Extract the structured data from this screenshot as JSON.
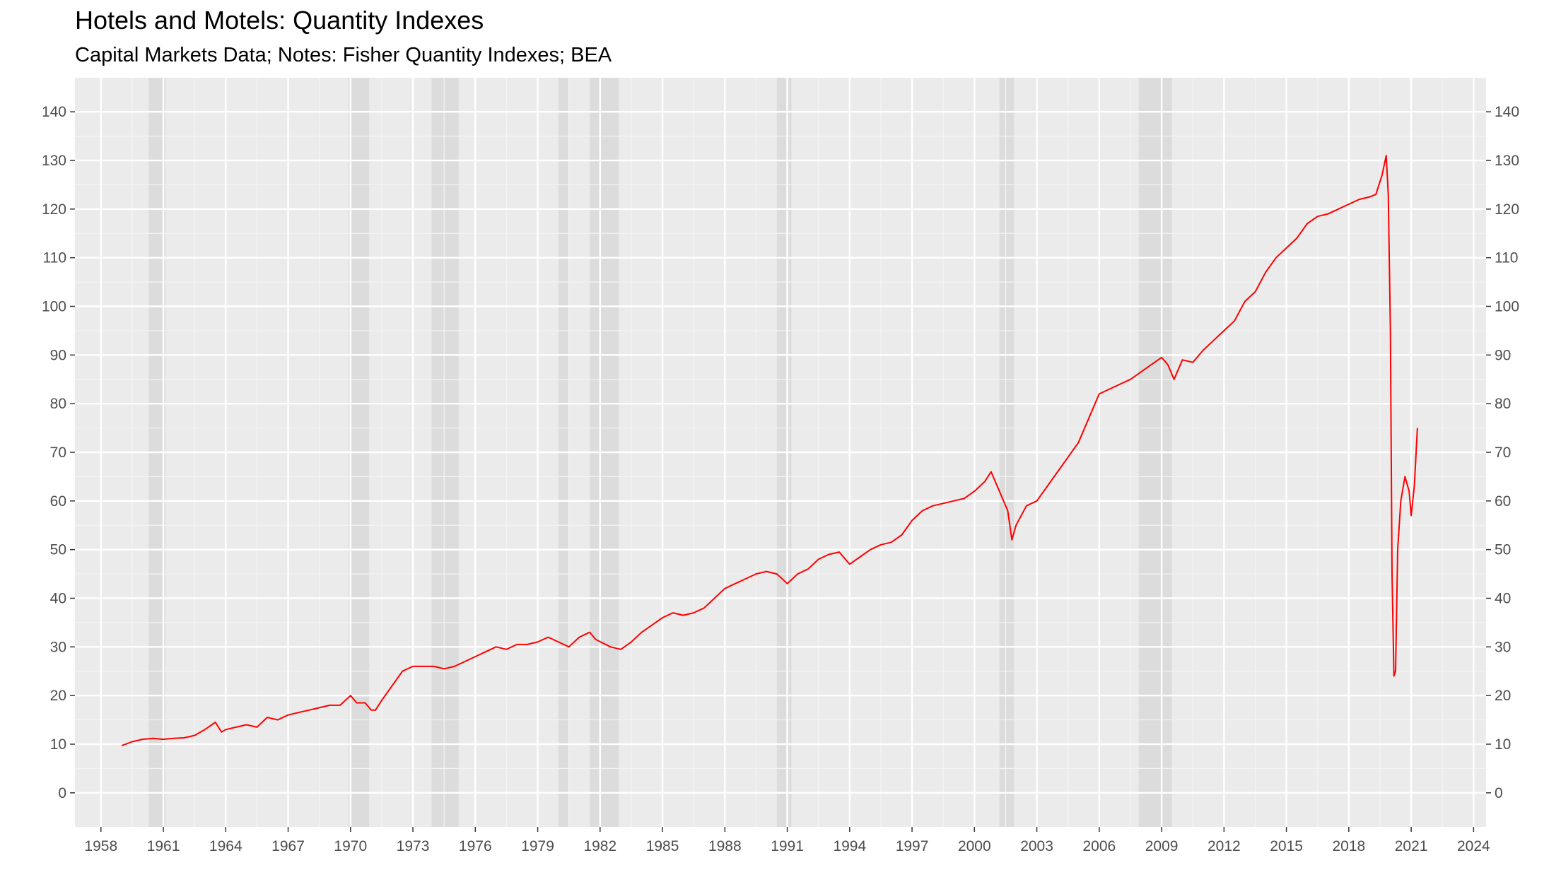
{
  "chart_data": {
    "type": "line",
    "title": "Hotels and Motels: Quantity Indexes",
    "subtitle": "Capital Markets Data; Notes: Fisher Quantity Indexes; BEA",
    "xlabel": "",
    "ylabel": "",
    "x_ticks": [
      "1958",
      "1961",
      "1964",
      "1967",
      "1970",
      "1973",
      "1976",
      "1979",
      "1982",
      "1985",
      "1988",
      "1991",
      "1994",
      "1997",
      "2000",
      "2003",
      "2006",
      "2009",
      "2012",
      "2015",
      "2018",
      "2021",
      "2024"
    ],
    "y_ticks": [
      "0",
      "10",
      "20",
      "30",
      "40",
      "50",
      "60",
      "70",
      "80",
      "90",
      "100",
      "110",
      "120",
      "130",
      "140"
    ],
    "xlim": [
      1956.75,
      2024.6
    ],
    "ylim": [
      -7,
      147
    ],
    "grid": true,
    "y_axis_mirrored_right": true,
    "recession_shading": [
      [
        1960.3,
        1961.1
      ],
      [
        1969.9,
        1970.9
      ],
      [
        1973.9,
        1975.2
      ],
      [
        1980.0,
        1980.5
      ],
      [
        1981.5,
        1982.9
      ],
      [
        1990.5,
        1991.2
      ],
      [
        2001.2,
        2001.9
      ],
      [
        2007.9,
        2009.5
      ]
    ],
    "series": [
      {
        "color": "#ff0000",
        "x": [
          1959.0,
          1959.5,
          1960.0,
          1960.5,
          1961.0,
          1961.5,
          1962.0,
          1962.5,
          1963.0,
          1963.5,
          1963.8,
          1964.0,
          1964.5,
          1965.0,
          1965.5,
          1966.0,
          1966.5,
          1967.0,
          1967.5,
          1968.0,
          1968.5,
          1969.0,
          1969.5,
          1970.0,
          1970.3,
          1970.7,
          1971.0,
          1971.2,
          1971.5,
          1972.0,
          1972.5,
          1973.0,
          1973.5,
          1974.0,
          1974.5,
          1975.0,
          1975.5,
          1976.0,
          1976.5,
          1977.0,
          1977.5,
          1978.0,
          1978.5,
          1979.0,
          1979.5,
          1980.0,
          1980.5,
          1981.0,
          1981.5,
          1981.8,
          1982.5,
          1983.0,
          1983.5,
          1984.0,
          1984.5,
          1985.0,
          1985.5,
          1986.0,
          1986.5,
          1987.0,
          1987.5,
          1988.0,
          1988.5,
          1989.0,
          1989.5,
          1990.0,
          1990.5,
          1991.0,
          1991.5,
          1992.0,
          1992.5,
          1993.0,
          1993.5,
          1994.0,
          1994.5,
          1995.0,
          1995.5,
          1996.0,
          1996.5,
          1997.0,
          1997.5,
          1998.0,
          1998.5,
          1999.0,
          1999.5,
          2000.0,
          2000.5,
          2000.8,
          2001.0,
          2001.3,
          2001.6,
          2001.8,
          2002.0,
          2002.5,
          2003.0,
          2003.5,
          2004.0,
          2004.5,
          2005.0,
          2005.5,
          2006.0,
          2006.5,
          2007.0,
          2007.5,
          2008.0,
          2008.5,
          2009.0,
          2009.3,
          2009.6,
          2010.0,
          2010.5,
          2011.0,
          2011.5,
          2012.0,
          2012.5,
          2013.0,
          2013.5,
          2014.0,
          2014.5,
          2015.0,
          2015.5,
          2016.0,
          2016.5,
          2017.0,
          2017.5,
          2018.0,
          2018.5,
          2019.0,
          2019.3,
          2019.6,
          2019.8,
          2019.9,
          2020.0,
          2020.08,
          2020.17,
          2020.25,
          2020.35,
          2020.5,
          2020.7,
          2020.9,
          2021.0,
          2021.15,
          2021.3
        ],
        "values": [
          9.7,
          10.5,
          11.0,
          11.2,
          11.0,
          11.2,
          11.3,
          11.8,
          13.0,
          14.5,
          12.5,
          13.0,
          13.5,
          14.0,
          13.5,
          15.5,
          15.0,
          16.0,
          16.5,
          17.0,
          17.5,
          18.0,
          18.0,
          20.0,
          18.5,
          18.5,
          17.0,
          17.0,
          19.0,
          22.0,
          25.0,
          26.0,
          26.0,
          26.0,
          25.5,
          26.0,
          27.0,
          28.0,
          29.0,
          30.0,
          29.5,
          30.5,
          30.5,
          31.0,
          32.0,
          31.0,
          30.0,
          32.0,
          33.0,
          31.5,
          30.0,
          29.5,
          31.0,
          33.0,
          34.5,
          36.0,
          37.0,
          36.5,
          37.0,
          38.0,
          40.0,
          42.0,
          43.0,
          44.0,
          45.0,
          45.5,
          45.0,
          43.0,
          45.0,
          46.0,
          48.0,
          49.0,
          49.5,
          47.0,
          48.5,
          50.0,
          51.0,
          51.5,
          53.0,
          56.0,
          58.0,
          59.0,
          59.5,
          60.0,
          60.5,
          62.0,
          64.0,
          66.0,
          64.0,
          61.0,
          58.0,
          52.0,
          55.0,
          59.0,
          60.0,
          63.0,
          66.0,
          69.0,
          72.0,
          77.0,
          82.0,
          83.0,
          84.0,
          85.0,
          86.5,
          88.0,
          89.5,
          88.0,
          85.0,
          89.0,
          88.5,
          91.0,
          93.0,
          95.0,
          97.0,
          101.0,
          103.0,
          107.0,
          110.0,
          112.0,
          114.0,
          117.0,
          118.5,
          119.0,
          120.0,
          121.0,
          122.0,
          122.5,
          123.0,
          127.0,
          131.0,
          123.0,
          95.0,
          45.0,
          24.0,
          25.0,
          50.0,
          60.0,
          65.0,
          62.0,
          57.0,
          63.0,
          75.0
        ]
      }
    ]
  }
}
